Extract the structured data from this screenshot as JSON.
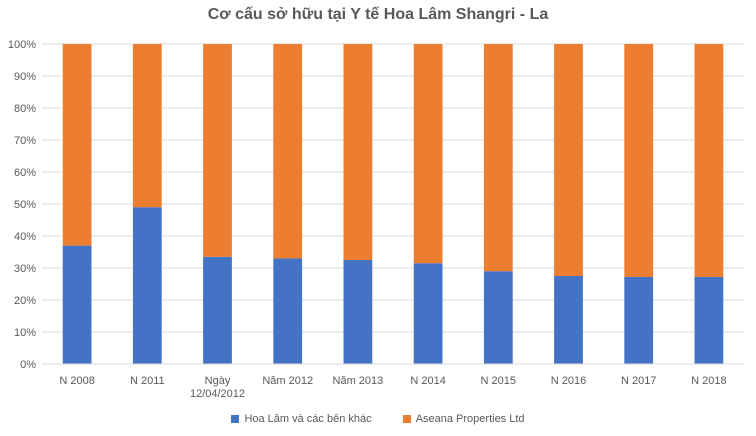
{
  "chart_data": {
    "type": "bar",
    "stacked": "percent",
    "title": "Cơ cấu sở hữu tại Y tế Hoa Lâm Shangri - La",
    "xlabel": "",
    "ylabel": "",
    "ylim": [
      0,
      100
    ],
    "y_ticks": [
      "0%",
      "10%",
      "20%",
      "30%",
      "40%",
      "50%",
      "60%",
      "70%",
      "80%",
      "90%",
      "100%"
    ],
    "grid": true,
    "legend_position": "bottom",
    "categories": [
      "N 2008",
      "N 2011",
      "Ngày 12/04/2012",
      "Năm 2012",
      "Năm 2013",
      "N 2014",
      "N 2015",
      "N 2016",
      "N 2017",
      "N 2018"
    ],
    "category_lines": [
      [
        "N 2008"
      ],
      [
        "N 2011"
      ],
      [
        "Ngày",
        "12/04/2012"
      ],
      [
        "Năm 2012"
      ],
      [
        "Năm 2013"
      ],
      [
        "N 2014"
      ],
      [
        "N 2015"
      ],
      [
        "N 2016"
      ],
      [
        "N 2017"
      ],
      [
        "N 2018"
      ]
    ],
    "series": [
      {
        "name": "Hoa Lâm  và các bên khác",
        "color": "#4472C4",
        "values": [
          37,
          49,
          33.5,
          33,
          32.5,
          31.5,
          29,
          27.5,
          27.2,
          27.2
        ]
      },
      {
        "name": "Aseana Properties Ltd",
        "color": "#ED7D31",
        "values": [
          63,
          51,
          66.5,
          67,
          67.5,
          68.5,
          71,
          72.5,
          72.8,
          72.8
        ]
      }
    ]
  }
}
